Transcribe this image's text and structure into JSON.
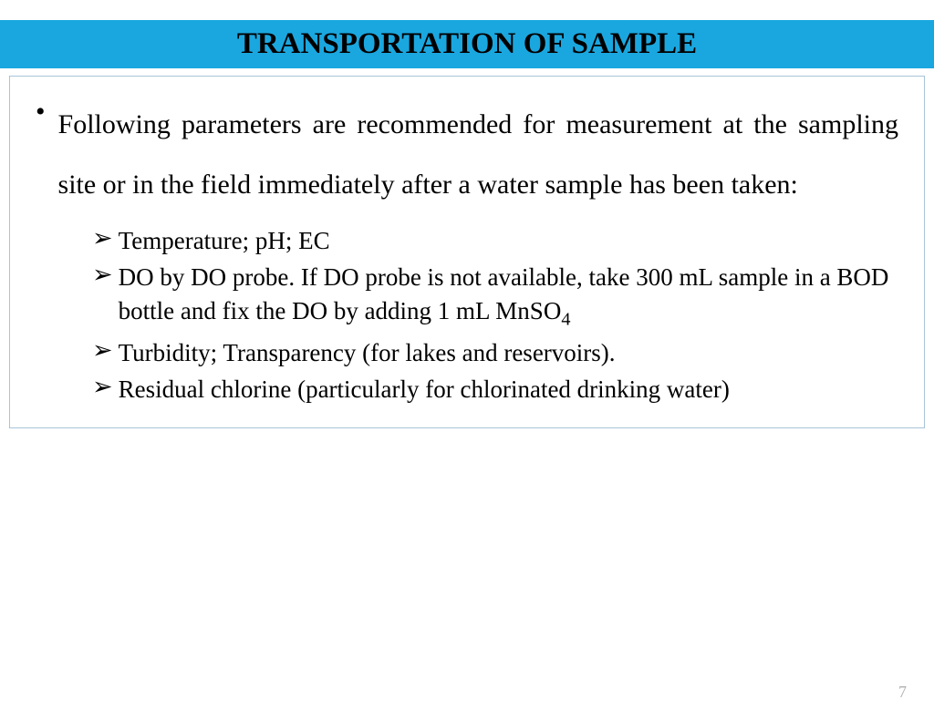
{
  "title": {
    "text": "TRANSPORTATION OF SAMPLE",
    "bg_color": "#1aa7e0",
    "color": "#000000",
    "fontsize": 33
  },
  "content_box": {
    "border_color": "#a8c4d8"
  },
  "main_bullet": {
    "marker": "•",
    "text": "Following parameters are recommended for measurement at the sampling site or in the field immediately after a water sample has been taken:",
    "fontsize": 30,
    "color": "#000000"
  },
  "sub_items": {
    "marker": "➢",
    "fontsize": 27,
    "color": "#000000",
    "items": [
      "Temperature;  pH; EC",
      "DO by DO probe. If DO probe is not available, take 300 mL sample in a BOD bottle and fix the DO by adding 1 mL MnSO₄",
      "Turbidity; Transparency (for lakes and reservoirs).",
      "Residual chlorine (particularly for chlorinated drinking water)"
    ]
  },
  "page_number": {
    "text": "7",
    "color": "#b0b0b0",
    "fontsize": 18
  }
}
